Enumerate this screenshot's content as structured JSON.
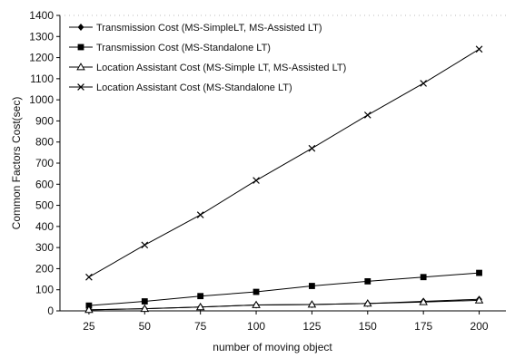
{
  "chart_data": {
    "type": "line",
    "title": "",
    "xlabel": "number of moving object",
    "ylabel": "Common Factors Cost(sec)",
    "x": [
      25,
      50,
      75,
      100,
      125,
      150,
      175,
      200
    ],
    "ylim": [
      0,
      1400
    ],
    "yticks": [
      0,
      100,
      200,
      300,
      400,
      500,
      600,
      700,
      800,
      900,
      1000,
      1100,
      1200,
      1300,
      1400
    ],
    "grid": false,
    "legend_position": "top-left",
    "series": [
      {
        "name": "Transmission Cost (MS-SimpleLT, MS-Assisted LT)",
        "marker": "diamond",
        "values": [
          5,
          10,
          18,
          28,
          30,
          35,
          45,
          55
        ]
      },
      {
        "name": "Transmission Cost (MS-Standalone LT)",
        "marker": "square",
        "values": [
          25,
          45,
          70,
          90,
          118,
          140,
          160,
          180
        ]
      },
      {
        "name": "Location Assistant Cost (MS-Simple LT, MS-Assisted LT)",
        "marker": "triangle",
        "values": [
          5,
          10,
          18,
          28,
          30,
          35,
          42,
          50
        ]
      },
      {
        "name": "Location Assistant Cost (MS-Standalone LT)",
        "marker": "x",
        "values": [
          160,
          312,
          455,
          618,
          770,
          928,
          1078,
          1240
        ]
      }
    ]
  }
}
